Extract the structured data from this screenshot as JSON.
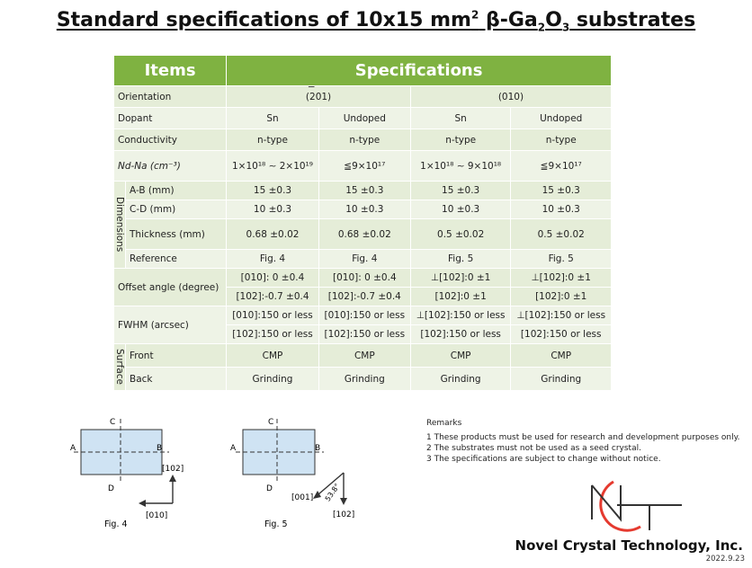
{
  "title_parts": {
    "a": "Standard specifications of 10x15 mm",
    "sup": "2",
    "b": " β-Ga",
    "sub1": "2",
    "c": "O",
    "sub2": "3",
    "d": " substrates"
  },
  "headers": {
    "items": "Items",
    "specs": "Specifications"
  },
  "orientation": {
    "label": "Orientation",
    "v1": "(201)",
    "v1_bar": "−",
    "v2": "(010)"
  },
  "dopant": {
    "label": "Dopant",
    "vals": [
      "Sn",
      "Undoped",
      "Sn",
      "Undoped"
    ]
  },
  "conductivity": {
    "label": "Conductivity",
    "vals": [
      "n-type",
      "n-type",
      "n-type",
      "n-type"
    ]
  },
  "ndna": {
    "label": "Nd-Na (cm⁻³)",
    "vals": [
      "1×10¹⁸ ∼ 2×10¹⁹",
      "≦9×10¹⁷",
      "1×10¹⁸ ∼ 9×10¹⁸",
      "≦9×10¹⁷"
    ]
  },
  "dimensions": {
    "group": "Dimensions",
    "ab": {
      "label": "A-B (mm)",
      "vals": [
        "15 ±0.3",
        "15 ±0.3",
        "15 ±0.3",
        "15 ±0.3"
      ]
    },
    "cd": {
      "label": "C-D (mm)",
      "vals": [
        "10 ±0.3",
        "10 ±0.3",
        "10 ±0.3",
        "10 ±0.3"
      ]
    },
    "thick": {
      "label": "Thickness (mm)",
      "vals": [
        "0.68 ±0.02",
        "0.68 ±0.02",
        "0.5 ±0.02",
        "0.5 ±0.02"
      ]
    },
    "ref": {
      "label": "Reference",
      "vals": [
        "Fig. 4",
        "Fig. 4",
        "Fig. 5",
        "Fig. 5"
      ]
    }
  },
  "offset": {
    "label": "Offset angle (degree)",
    "r1": [
      "[010]: 0 ±0.4",
      "[010]: 0 ±0.4",
      "⊥[102]:0 ±1",
      "⊥[102]:0 ±1"
    ],
    "r2": [
      "[102]:-0.7 ±0.4",
      "[102]:-0.7 ±0.4",
      "[102]:0 ±1",
      "[102]:0 ±1"
    ]
  },
  "fwhm": {
    "label": "FWHM (arcsec)",
    "r1": [
      "[010]:150 or less",
      "[010]:150 or less",
      "⊥[102]:150 or less",
      "⊥[102]:150 or less"
    ],
    "r2": [
      "[102]:150 or less",
      "[102]:150 or less",
      "[102]:150 or less",
      "[102]:150 or less"
    ]
  },
  "surface": {
    "group": "Surface",
    "front": {
      "label": "Front",
      "vals": [
        "CMP",
        "CMP",
        "CMP",
        "CMP"
      ]
    },
    "back": {
      "label": "Back",
      "vals": [
        "Grinding",
        "Grinding",
        "Grinding",
        "Grinding"
      ]
    }
  },
  "fig4": {
    "caption": "Fig. 4",
    "A": "A",
    "B": "B",
    "C": "C",
    "D": "D",
    "dir1": "[102]",
    "dir2": "[010]"
  },
  "fig5": {
    "caption": "Fig. 5",
    "A": "A",
    "B": "B",
    "C": "C",
    "D": "D",
    "dir1": "[001]",
    "angle": "53.8°",
    "dir2": "[102]"
  },
  "remarks": {
    "title": "Remarks",
    "items": [
      "1 These products must be used for research and development purposes only.",
      "2 The substrates must not be used as a seed crystal.",
      "3 The specifications are subject to change without notice."
    ]
  },
  "company": "Novel Crystal Technology, Inc.",
  "date": "2022.9.23",
  "colors": {
    "header": "#7fb241",
    "cell": "#e5edd8",
    "logo_red": "#e53a2f"
  }
}
